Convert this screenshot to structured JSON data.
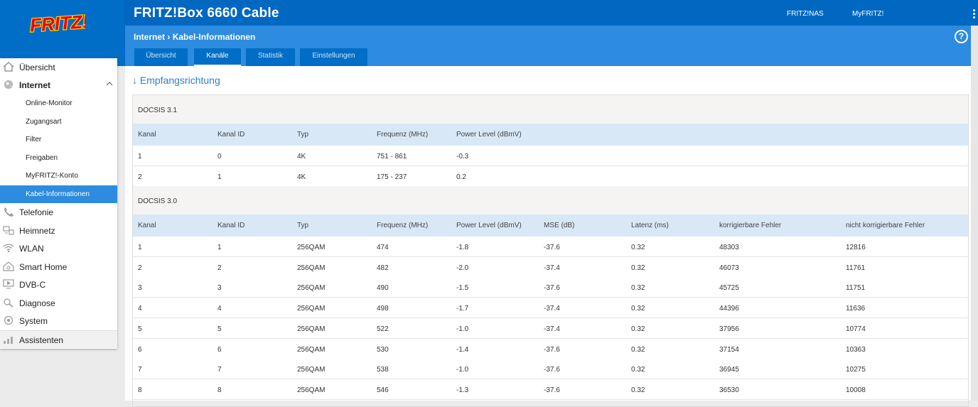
{
  "header": {
    "brand": "FRITZ!Box 6660 Cable",
    "links": [
      "FRITZ!NAS",
      "MyFRITZ!"
    ],
    "breadcrumb_parent": "Internet",
    "breadcrumb_separator": "›",
    "breadcrumb_current": "Kabel-Informationen",
    "help_label": "?",
    "logo_text": "FRITZ!"
  },
  "tabs": [
    {
      "label": "Übersicht",
      "active": false
    },
    {
      "label": "Kanäle",
      "active": true
    },
    {
      "label": "Statistik",
      "active": false
    },
    {
      "label": "Einstellungen",
      "active": false
    }
  ],
  "sidebar": {
    "items": [
      {
        "label": "Übersicht",
        "icon": "home-icon",
        "level": 1
      },
      {
        "label": "Internet",
        "icon": "globe-icon",
        "level": 1,
        "expanded": true
      },
      {
        "label": "Online-Monitor",
        "level": 2
      },
      {
        "label": "Zugangsart",
        "level": 2
      },
      {
        "label": "Filter",
        "level": 2
      },
      {
        "label": "Freigaben",
        "level": 2
      },
      {
        "label": "MyFRITZ!-Konto",
        "level": 2
      },
      {
        "label": "Kabel-Informationen",
        "level": 2,
        "active": true
      },
      {
        "label": "Telefonie",
        "icon": "phone-icon",
        "level": 1
      },
      {
        "label": "Heimnetz",
        "icon": "network-icon",
        "level": 1
      },
      {
        "label": "WLAN",
        "icon": "wifi-icon",
        "level": 1
      },
      {
        "label": "Smart Home",
        "icon": "smart-home-icon",
        "level": 1
      },
      {
        "label": "DVB-C",
        "icon": "tv-icon",
        "level": 1
      },
      {
        "label": "Diagnose",
        "icon": "diagnose-icon",
        "level": 1
      },
      {
        "label": "System",
        "icon": "system-icon",
        "level": 1
      },
      {
        "label": "Assistenten",
        "icon": "wizard-icon",
        "level": 1
      }
    ]
  },
  "main": {
    "section_arrow": "↓",
    "section_title": "Empfangsrichtung",
    "docsis31": {
      "title": "DOCSIS 3.1",
      "columns": [
        "Kanal",
        "Kanal ID",
        "Typ",
        "Frequenz (MHz)",
        "Power Level (dBmV)"
      ],
      "rows": [
        [
          "1",
          "0",
          "4K",
          "751 - 861",
          "-0.3"
        ],
        [
          "2",
          "1",
          "4K",
          "175 - 237",
          "0.2"
        ]
      ]
    },
    "docsis30": {
      "title": "DOCSIS 3.0",
      "columns": [
        "Kanal",
        "Kanal ID",
        "Typ",
        "Frequenz (MHz)",
        "Power Level (dBmV)",
        "MSE (dB)",
        "Latenz (ms)",
        "korrigierbare Fehler",
        "nicht korrigierbare Fehler"
      ],
      "rows": [
        [
          "1",
          "1",
          "256QAM",
          "474",
          "-1.8",
          "-37.6",
          "0.32",
          "48303",
          "12816"
        ],
        [
          "2",
          "2",
          "256QAM",
          "482",
          "-2.0",
          "-37.4",
          "0.32",
          "46073",
          "11761"
        ],
        [
          "3",
          "3",
          "256QAM",
          "490",
          "-1.5",
          "-37.6",
          "0.32",
          "45725",
          "11751"
        ],
        [
          "4",
          "4",
          "256QAM",
          "498",
          "-1.7",
          "-37.4",
          "0.32",
          "44396",
          "11636"
        ],
        [
          "5",
          "5",
          "256QAM",
          "522",
          "-1.0",
          "-37.4",
          "0.32",
          "37956",
          "10774"
        ],
        [
          "6",
          "6",
          "256QAM",
          "530",
          "-1.4",
          "-37.6",
          "0.32",
          "37154",
          "10363"
        ],
        [
          "7",
          "7",
          "256QAM",
          "538",
          "-1.0",
          "-37.6",
          "0.32",
          "36945",
          "10275"
        ],
        [
          "8",
          "8",
          "256QAM",
          "546",
          "-1.3",
          "-37.6",
          "0.32",
          "36530",
          "10008"
        ]
      ]
    }
  }
}
